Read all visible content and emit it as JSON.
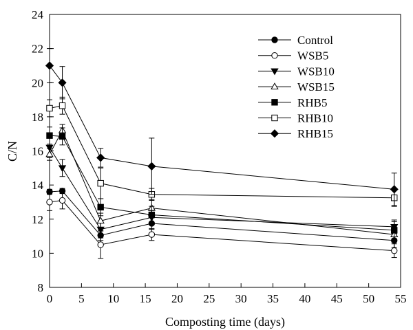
{
  "chart_data": {
    "type": "line",
    "title": "",
    "xlabel": "Composting time (days)",
    "ylabel": "C/N",
    "xlim": [
      0,
      55
    ],
    "ylim": [
      8,
      24
    ],
    "xticks": [
      0,
      5,
      10,
      15,
      20,
      25,
      30,
      35,
      40,
      45,
      50,
      55
    ],
    "yticks": [
      8,
      10,
      12,
      14,
      16,
      18,
      20,
      22,
      24
    ],
    "grid": false,
    "legend_position": "top-right",
    "x": [
      0,
      2,
      8,
      16,
      54
    ],
    "series": [
      {
        "name": "Control",
        "marker": "circle-filled",
        "values": [
          13.6,
          13.65,
          11.05,
          11.75,
          10.75
        ],
        "errors": [
          0.15,
          0.15,
          0.3,
          0.35,
          0.4
        ]
      },
      {
        "name": "WSB5",
        "marker": "circle-open",
        "values": [
          13.0,
          13.1,
          10.5,
          11.1,
          10.15
        ],
        "errors": [
          0.5,
          0.5,
          0.8,
          0.35,
          0.4
        ]
      },
      {
        "name": "WSB10",
        "marker": "triangle-down-filled",
        "values": [
          16.2,
          15.0,
          11.4,
          12.1,
          11.55
        ],
        "errors": [
          0.6,
          0.5,
          0.5,
          0.4,
          0.4
        ]
      },
      {
        "name": "WSB15",
        "marker": "triangle-up-open",
        "values": [
          15.8,
          17.2,
          11.9,
          12.65,
          11.1
        ],
        "errors": [
          0.35,
          0.35,
          0.45,
          0.5,
          0.45
        ]
      },
      {
        "name": "RHB5",
        "marker": "square-filled",
        "values": [
          16.9,
          16.85,
          12.7,
          12.25,
          11.35
        ],
        "errors": [
          0.5,
          0.5,
          0.5,
          0.5,
          0.5
        ]
      },
      {
        "name": "RHB10",
        "marker": "square-open",
        "values": [
          18.5,
          18.65,
          14.1,
          13.45,
          13.25
        ],
        "errors": [
          0.5,
          0.5,
          0.9,
          0.35,
          0.5
        ]
      },
      {
        "name": "RHB15",
        "marker": "diamond-filled",
        "values": [
          21.0,
          20.0,
          15.6,
          15.1,
          13.75
        ],
        "errors": [
          1.0,
          0.95,
          0.55,
          1.65,
          0.95
        ]
      }
    ]
  }
}
